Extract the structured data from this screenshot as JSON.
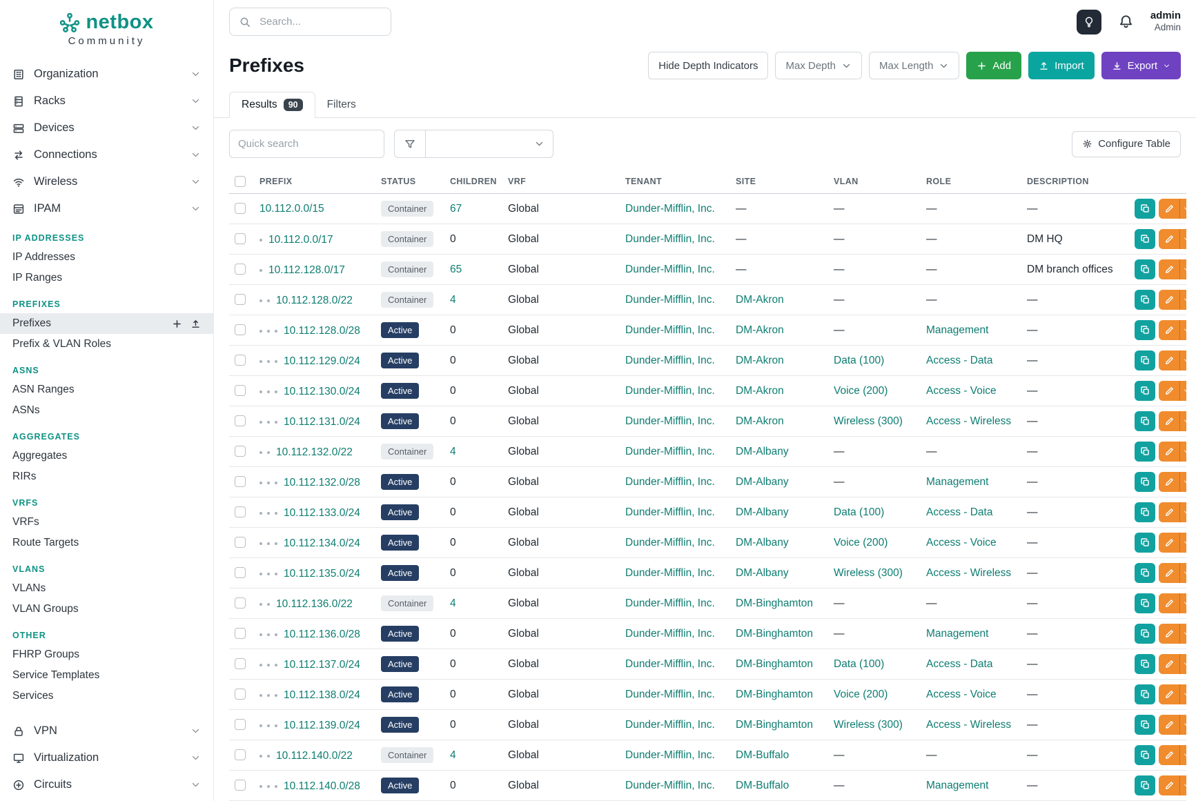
{
  "brand": {
    "name": "netbox",
    "subtitle": "Community"
  },
  "topbar": {
    "search_placeholder": "Search...",
    "user_name": "admin",
    "user_role": "Admin"
  },
  "sidebar": {
    "top_items": [
      {
        "label": "Organization",
        "icon": "organization-icon"
      },
      {
        "label": "Racks",
        "icon": "racks-icon"
      },
      {
        "label": "Devices",
        "icon": "devices-icon"
      },
      {
        "label": "Connections",
        "icon": "connections-icon"
      },
      {
        "label": "Wireless",
        "icon": "wireless-icon"
      },
      {
        "label": "IPAM",
        "icon": "ipam-icon"
      }
    ],
    "ipam_sections": [
      {
        "header": "IP ADDRESSES",
        "links": [
          {
            "label": "IP Addresses"
          },
          {
            "label": "IP Ranges"
          }
        ]
      },
      {
        "header": "PREFIXES",
        "links": [
          {
            "label": "Prefixes",
            "active": true
          },
          {
            "label": "Prefix & VLAN Roles"
          }
        ]
      },
      {
        "header": "ASNS",
        "links": [
          {
            "label": "ASN Ranges"
          },
          {
            "label": "ASNs"
          }
        ]
      },
      {
        "header": "AGGREGATES",
        "links": [
          {
            "label": "Aggregates"
          },
          {
            "label": "RIRs"
          }
        ]
      },
      {
        "header": "VRFS",
        "links": [
          {
            "label": "VRFs"
          },
          {
            "label": "Route Targets"
          }
        ]
      },
      {
        "header": "VLANS",
        "links": [
          {
            "label": "VLANs"
          },
          {
            "label": "VLAN Groups"
          }
        ]
      },
      {
        "header": "OTHER",
        "links": [
          {
            "label": "FHRP Groups"
          },
          {
            "label": "Service Templates"
          },
          {
            "label": "Services"
          }
        ]
      }
    ],
    "bottom_items": [
      {
        "label": "VPN",
        "icon": "vpn-icon"
      },
      {
        "label": "Virtualization",
        "icon": "virtualization-icon"
      },
      {
        "label": "Circuits",
        "icon": "circuits-icon"
      }
    ]
  },
  "page": {
    "title": "Prefixes",
    "hide_depth_button": "Hide Depth Indicators",
    "max_depth_button": "Max Depth",
    "max_length_button": "Max Length",
    "add_button": "Add",
    "import_button": "Import",
    "export_button": "Export",
    "tabs": [
      {
        "label": "Results",
        "badge": "90",
        "active": true
      },
      {
        "label": "Filters",
        "active": false
      }
    ],
    "quick_search_placeholder": "Quick search",
    "configure_table_button": "Configure Table"
  },
  "icons": [
    "netbox-logo-icon",
    "search-icon",
    "lightbulb-icon",
    "bell-icon",
    "chevron-down-icon",
    "plus-icon",
    "upload-icon",
    "download-icon",
    "funnel-icon",
    "gear-icon",
    "copy-icon",
    "pencil-icon"
  ],
  "colors": {
    "brand_teal": "#0e9285",
    "link_teal": "#0d7d71",
    "add_green": "#28a14b",
    "import_teal": "#0ba5a0",
    "export_purple": "#6f42c1",
    "active_badge": "#263e63"
  },
  "table": {
    "columns": [
      "PREFIX",
      "STATUS",
      "CHILDREN",
      "VRF",
      "TENANT",
      "SITE",
      "VLAN",
      "ROLE",
      "DESCRIPTION"
    ],
    "rows": [
      {
        "depth": 0,
        "prefix": "10.112.0.0/15",
        "status": "Container",
        "children": "67",
        "vrf": "Global",
        "tenant": "Dunder-Mifflin, Inc.",
        "site": "—",
        "vlan": "—",
        "role": "—",
        "description": "—"
      },
      {
        "depth": 1,
        "prefix": "10.112.0.0/17",
        "status": "Container",
        "children": "0",
        "vrf": "Global",
        "tenant": "Dunder-Mifflin, Inc.",
        "site": "—",
        "vlan": "—",
        "role": "—",
        "description": "DM HQ"
      },
      {
        "depth": 1,
        "prefix": "10.112.128.0/17",
        "status": "Container",
        "children": "65",
        "vrf": "Global",
        "tenant": "Dunder-Mifflin, Inc.",
        "site": "—",
        "vlan": "—",
        "role": "—",
        "description": "DM branch offices"
      },
      {
        "depth": 2,
        "prefix": "10.112.128.0/22",
        "status": "Container",
        "children": "4",
        "vrf": "Global",
        "tenant": "Dunder-Mifflin, Inc.",
        "site": "DM-Akron",
        "vlan": "—",
        "role": "—",
        "description": "—"
      },
      {
        "depth": 3,
        "prefix": "10.112.128.0/28",
        "status": "Active",
        "children": "0",
        "vrf": "Global",
        "tenant": "Dunder-Mifflin, Inc.",
        "site": "DM-Akron",
        "vlan": "—",
        "role": "Management",
        "description": "—"
      },
      {
        "depth": 3,
        "prefix": "10.112.129.0/24",
        "status": "Active",
        "children": "0",
        "vrf": "Global",
        "tenant": "Dunder-Mifflin, Inc.",
        "site": "DM-Akron",
        "vlan": "Data (100)",
        "role": "Access - Data",
        "description": "—"
      },
      {
        "depth": 3,
        "prefix": "10.112.130.0/24",
        "status": "Active",
        "children": "0",
        "vrf": "Global",
        "tenant": "Dunder-Mifflin, Inc.",
        "site": "DM-Akron",
        "vlan": "Voice (200)",
        "role": "Access - Voice",
        "description": "—"
      },
      {
        "depth": 3,
        "prefix": "10.112.131.0/24",
        "status": "Active",
        "children": "0",
        "vrf": "Global",
        "tenant": "Dunder-Mifflin, Inc.",
        "site": "DM-Akron",
        "vlan": "Wireless (300)",
        "role": "Access - Wireless",
        "description": "—"
      },
      {
        "depth": 2,
        "prefix": "10.112.132.0/22",
        "status": "Container",
        "children": "4",
        "vrf": "Global",
        "tenant": "Dunder-Mifflin, Inc.",
        "site": "DM-Albany",
        "vlan": "—",
        "role": "—",
        "description": "—"
      },
      {
        "depth": 3,
        "prefix": "10.112.132.0/28",
        "status": "Active",
        "children": "0",
        "vrf": "Global",
        "tenant": "Dunder-Mifflin, Inc.",
        "site": "DM-Albany",
        "vlan": "—",
        "role": "Management",
        "description": "—"
      },
      {
        "depth": 3,
        "prefix": "10.112.133.0/24",
        "status": "Active",
        "children": "0",
        "vrf": "Global",
        "tenant": "Dunder-Mifflin, Inc.",
        "site": "DM-Albany",
        "vlan": "Data (100)",
        "role": "Access - Data",
        "description": "—"
      },
      {
        "depth": 3,
        "prefix": "10.112.134.0/24",
        "status": "Active",
        "children": "0",
        "vrf": "Global",
        "tenant": "Dunder-Mifflin, Inc.",
        "site": "DM-Albany",
        "vlan": "Voice (200)",
        "role": "Access - Voice",
        "description": "—"
      },
      {
        "depth": 3,
        "prefix": "10.112.135.0/24",
        "status": "Active",
        "children": "0",
        "vrf": "Global",
        "tenant": "Dunder-Mifflin, Inc.",
        "site": "DM-Albany",
        "vlan": "Wireless (300)",
        "role": "Access - Wireless",
        "description": "—"
      },
      {
        "depth": 2,
        "prefix": "10.112.136.0/22",
        "status": "Container",
        "children": "4",
        "vrf": "Global",
        "tenant": "Dunder-Mifflin, Inc.",
        "site": "DM-Binghamton",
        "vlan": "—",
        "role": "—",
        "description": "—"
      },
      {
        "depth": 3,
        "prefix": "10.112.136.0/28",
        "status": "Active",
        "children": "0",
        "vrf": "Global",
        "tenant": "Dunder-Mifflin, Inc.",
        "site": "DM-Binghamton",
        "vlan": "—",
        "role": "Management",
        "description": "—"
      },
      {
        "depth": 3,
        "prefix": "10.112.137.0/24",
        "status": "Active",
        "children": "0",
        "vrf": "Global",
        "tenant": "Dunder-Mifflin, Inc.",
        "site": "DM-Binghamton",
        "vlan": "Data (100)",
        "role": "Access - Data",
        "description": "—"
      },
      {
        "depth": 3,
        "prefix": "10.112.138.0/24",
        "status": "Active",
        "children": "0",
        "vrf": "Global",
        "tenant": "Dunder-Mifflin, Inc.",
        "site": "DM-Binghamton",
        "vlan": "Voice (200)",
        "role": "Access - Voice",
        "description": "—"
      },
      {
        "depth": 3,
        "prefix": "10.112.139.0/24",
        "status": "Active",
        "children": "0",
        "vrf": "Global",
        "tenant": "Dunder-Mifflin, Inc.",
        "site": "DM-Binghamton",
        "vlan": "Wireless (300)",
        "role": "Access - Wireless",
        "description": "—"
      },
      {
        "depth": 2,
        "prefix": "10.112.140.0/22",
        "status": "Container",
        "children": "4",
        "vrf": "Global",
        "tenant": "Dunder-Mifflin, Inc.",
        "site": "DM-Buffalo",
        "vlan": "—",
        "role": "—",
        "description": "—"
      },
      {
        "depth": 3,
        "prefix": "10.112.140.0/28",
        "status": "Active",
        "children": "0",
        "vrf": "Global",
        "tenant": "Dunder-Mifflin, Inc.",
        "site": "DM-Buffalo",
        "vlan": "—",
        "role": "Management",
        "description": "—"
      }
    ]
  }
}
